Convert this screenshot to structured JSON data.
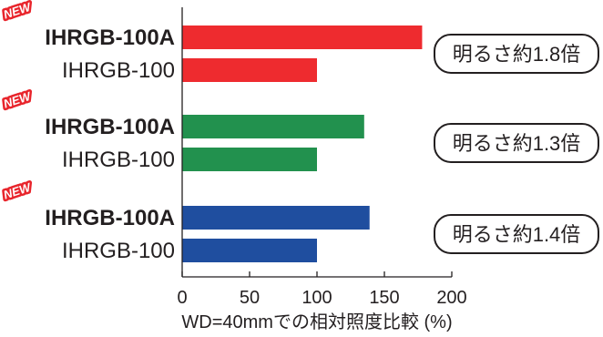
{
  "chart_data": {
    "type": "bar",
    "orientation": "horizontal",
    "xlabel": "WD=40mmでの相対照度比較 (%)",
    "xlim": [
      0,
      200
    ],
    "xticks": [
      0,
      50,
      100,
      150,
      200
    ],
    "grid": false,
    "new_badge": "NEW",
    "groups": [
      {
        "color": "#ee2b2f",
        "callout": "明るさ約1.8倍",
        "bars": [
          {
            "label": "IHRGB-100A",
            "bold": true,
            "value": 178
          },
          {
            "label": "IHRGB-100",
            "bold": false,
            "value": 100
          }
        ]
      },
      {
        "color": "#22914e",
        "callout": "明るさ約1.3倍",
        "bars": [
          {
            "label": "IHRGB-100A",
            "bold": true,
            "value": 135
          },
          {
            "label": "IHRGB-100",
            "bold": false,
            "value": 100
          }
        ]
      },
      {
        "color": "#1f4e9f",
        "callout": "明るさ約1.4倍",
        "bars": [
          {
            "label": "IHRGB-100A",
            "bold": true,
            "value": 139
          },
          {
            "label": "IHRGB-100",
            "bold": false,
            "value": 100
          }
        ]
      }
    ]
  }
}
